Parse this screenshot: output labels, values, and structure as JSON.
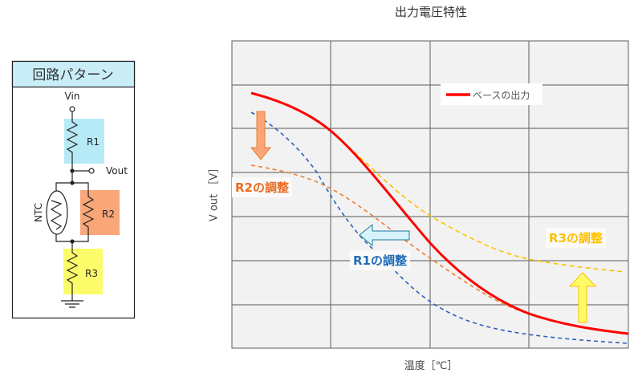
{
  "circuit": {
    "header": "回路パターン",
    "vin": "Vin",
    "vout": "Vout",
    "ntc": "NTC",
    "r1": "R1",
    "r2": "R2",
    "r3": "R3",
    "colors": {
      "header_bg": "#c9eef8",
      "r1": "#b7eaf7",
      "r2": "#f9a679",
      "r3": "#fcfc6b"
    }
  },
  "chart": {
    "title": "出力電圧特性",
    "ylabel": "V out ［V］",
    "xlabel": "温度［℃］",
    "legend": "ベースの出力",
    "annotations": {
      "r1": "R1の調整",
      "r2": "R2の調整",
      "r3": "R3の調整"
    },
    "colors": {
      "base": "#ff0000",
      "r1": "#2e5fbf",
      "r2": "#ed7d31",
      "r3": "#ffc000"
    }
  }
}
